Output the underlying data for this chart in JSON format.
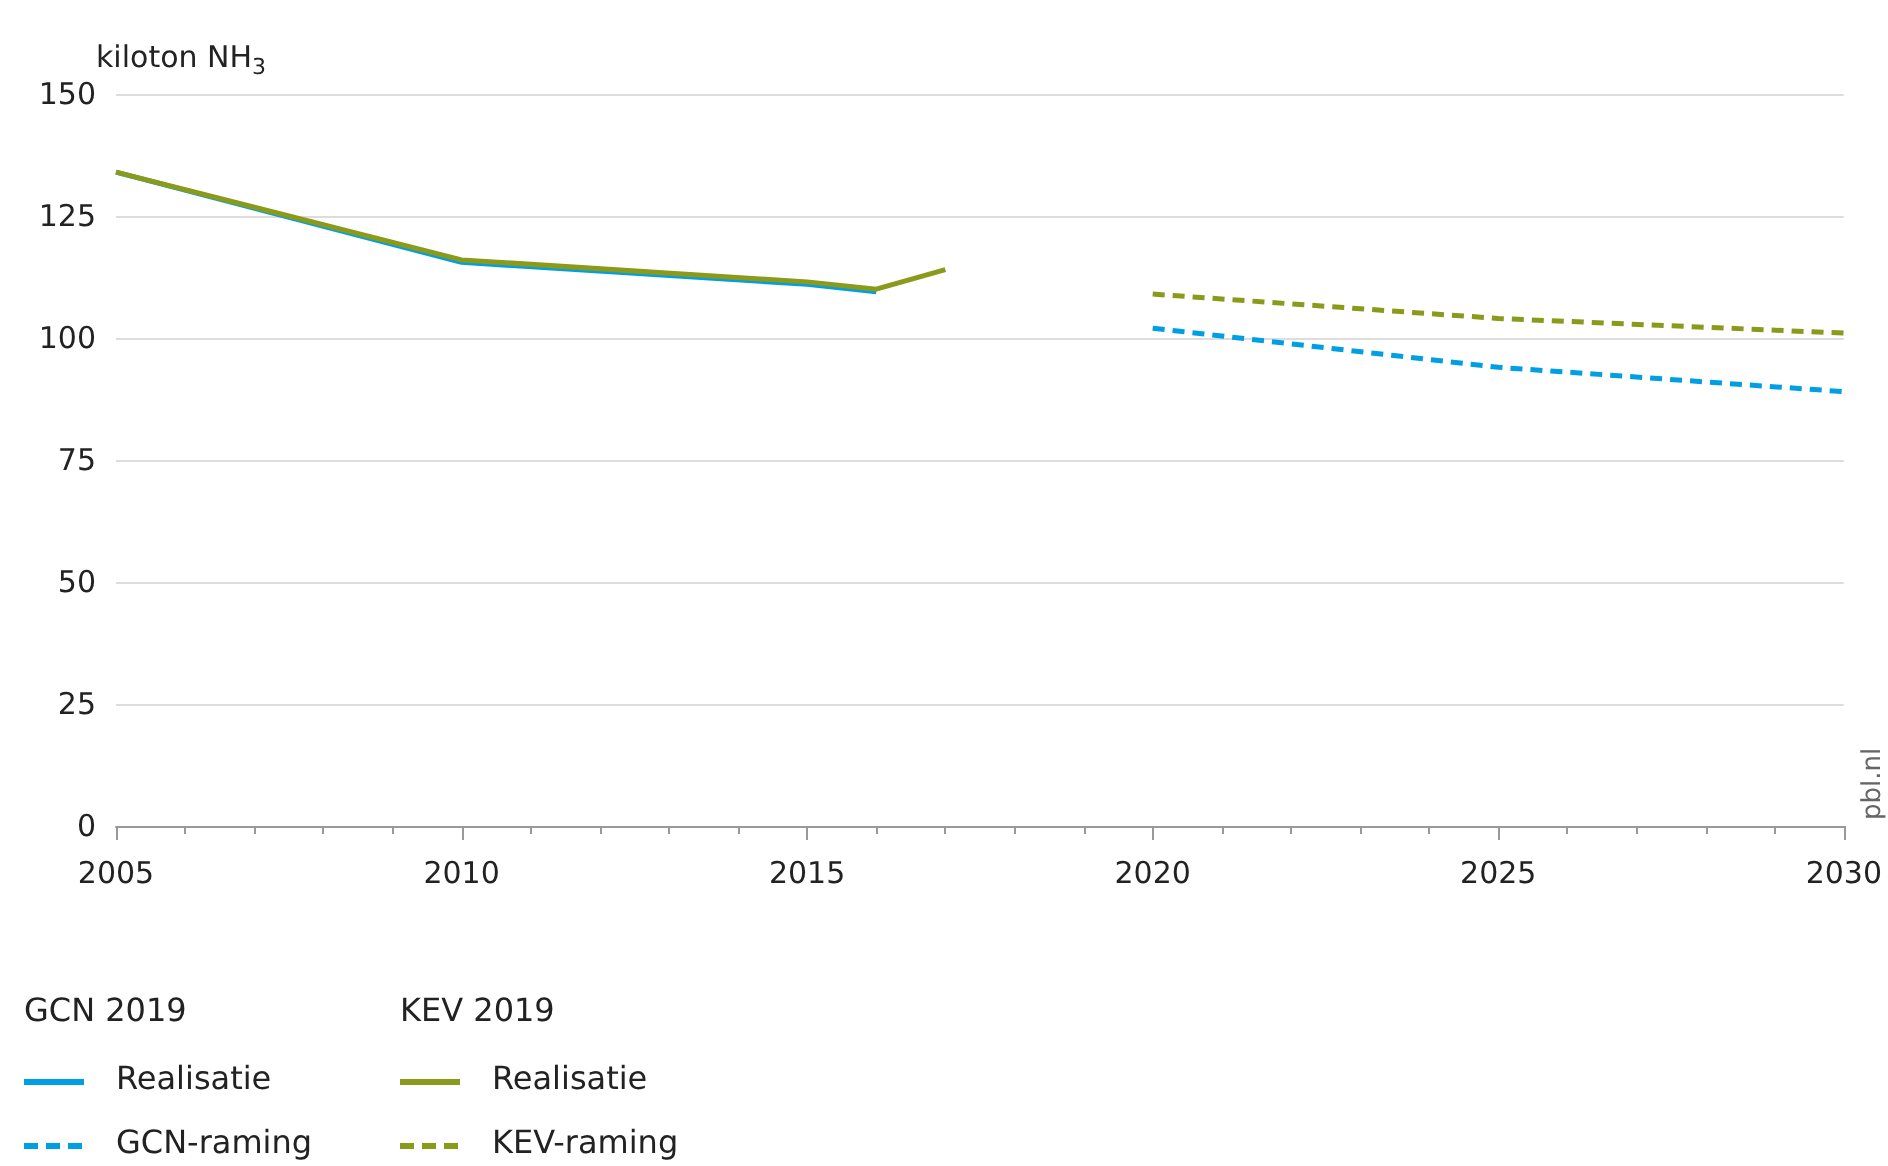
{
  "chart_data": {
    "type": "line",
    "ylabel": "kiloton NH$_{3}$",
    "xlim": [
      2005,
      2030
    ],
    "xticks": [
      2005,
      2010,
      2015,
      2020,
      2025,
      2030
    ],
    "ylim": [
      0,
      150
    ],
    "yticks": [
      0,
      25,
      50,
      75,
      100,
      125,
      150
    ],
    "grid": "y",
    "legend": "bottom left",
    "marker": "none",
    "annotations": [
      "GCN 2019",
      "KEV 2019",
      "pbl.nl"
    ],
    "series": [
      {
        "name": "Realisatie",
        "color": "#009fe3",
        "line_style": "solid",
        "x": [
          2005,
          2010,
          2015,
          2016
        ],
        "values": [
          134,
          115.5,
          111,
          109.5
        ]
      },
      {
        "name": "GCN-raming",
        "color": "#009fe3",
        "line_style": "dashed",
        "x": [
          2020,
          2025,
          2030
        ],
        "values": [
          102,
          94,
          89
        ]
      },
      {
        "name": "Realisatie",
        "color": "#8a9a1a",
        "line_style": "solid",
        "x": [
          2005,
          2010,
          2015,
          2016,
          2017
        ],
        "values": [
          134,
          116,
          111.5,
          110,
          114
        ]
      },
      {
        "name": "KEV-raming",
        "color": "#8a9a1a",
        "line_style": "dashed",
        "x": [
          2020,
          2025,
          2030
        ],
        "values": [
          109,
          104,
          101
        ]
      }
    ]
  }
}
